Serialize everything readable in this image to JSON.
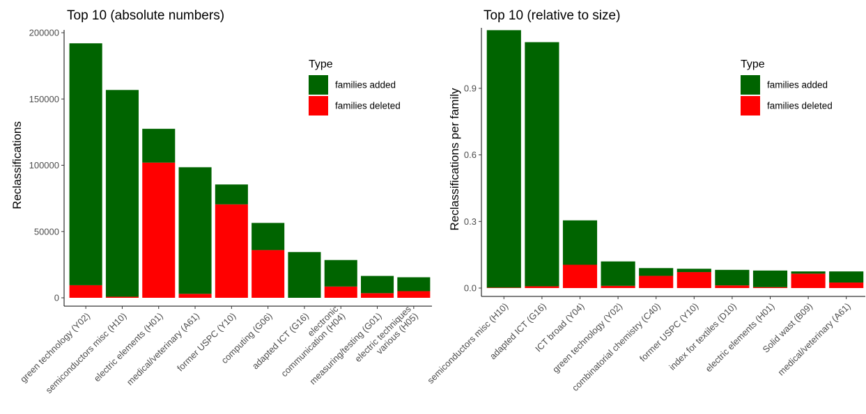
{
  "colors": {
    "added": "#006400",
    "deleted": "#ff0000"
  },
  "chart_data": [
    {
      "type": "bar",
      "stacked": true,
      "title": "Top 10 (absolute numbers)",
      "xlabel": "",
      "ylabel": "Reclassifications",
      "ylim": [
        0,
        200000
      ],
      "yticks": [
        "0",
        "50000",
        "100000",
        "150000",
        "200000"
      ],
      "ytick_values": [
        0,
        50000,
        100000,
        150000,
        200000
      ],
      "grid": false,
      "legend_title": "Type",
      "legend_position": "top-right",
      "categories": [
        [
          "green technology (Y02)"
        ],
        [
          "semiconductors misc (H10)"
        ],
        [
          "electric elements (H01)"
        ],
        [
          "medical/veterinary (A61)"
        ],
        [
          "former USPC (Y10)"
        ],
        [
          "computing (G06)"
        ],
        [
          "adapted ICT (G16)"
        ],
        [
          "electronic",
          "communication (H04)"
        ],
        [
          "measuring/testing (G01)"
        ],
        [
          "electric techniques",
          "various (H05)"
        ]
      ],
      "series": [
        {
          "name": "families added",
          "values": [
            182500,
            156000,
            25500,
            95500,
            15000,
            20500,
            34500,
            20000,
            13000,
            10500
          ]
        },
        {
          "name": "families deleted",
          "values": [
            9500,
            800,
            102000,
            3000,
            70500,
            36000,
            0,
            8500,
            3500,
            5000
          ]
        }
      ]
    },
    {
      "type": "bar",
      "stacked": true,
      "title": "Top 10 (relative to size)",
      "xlabel": "",
      "ylabel": "Reclassifications per family",
      "ylim": [
        0,
        1.16
      ],
      "yticks": [
        "0.0",
        "0.3",
        "0.6",
        "0.9"
      ],
      "ytick_values": [
        0,
        0.3,
        0.6,
        0.9
      ],
      "grid": false,
      "legend_title": "Type",
      "legend_position": "top-right",
      "categories": [
        [
          "semiconductors misc (H10)"
        ],
        [
          "adapted ICT (G16)"
        ],
        [
          "ICT broad (Y04)"
        ],
        [
          "green technology (Y02)"
        ],
        [
          "combinatorial chemistry (C40)"
        ],
        [
          "former USPC (Y10)"
        ],
        [
          "index for textiles (D10)"
        ],
        [
          "electric elements (H01)"
        ],
        [
          "Solid wast (B09)"
        ],
        [
          "medical/veterinary (A61)"
        ]
      ],
      "series": [
        {
          "name": "families added",
          "values": [
            1.16,
            1.1,
            0.2,
            0.11,
            0.035,
            0.015,
            0.07,
            0.075,
            0.01,
            0.05
          ]
        },
        {
          "name": "families deleted",
          "values": [
            0.002,
            0.008,
            0.105,
            0.01,
            0.055,
            0.072,
            0.012,
            0.004,
            0.065,
            0.025
          ]
        }
      ]
    }
  ]
}
